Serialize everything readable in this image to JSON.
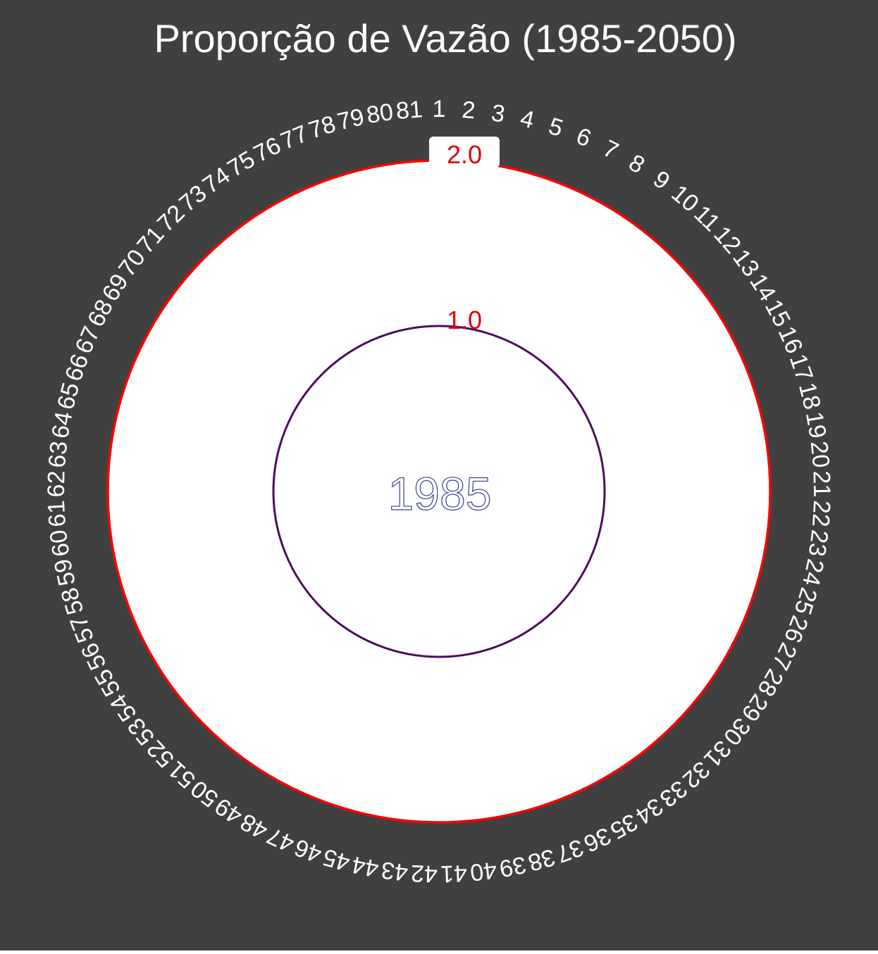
{
  "chart_data": {
    "type": "polar-line",
    "title": "Proporção de Vazão (1985-2050)",
    "center_label": "1985",
    "year_range": [
      1985,
      2050
    ],
    "current_year": 1985,
    "r_range": [
      0,
      2.0
    ],
    "r_ticks": [
      {
        "value": 1.0,
        "label": "1.0"
      },
      {
        "value": 2.0,
        "label": "2.0"
      }
    ],
    "angle_labels": [
      "1",
      "2",
      "3",
      "4",
      "5",
      "6",
      "7",
      "8",
      "9",
      "10",
      "11",
      "12",
      "13",
      "14",
      "15",
      "16",
      "17",
      "18",
      "19",
      "20",
      "21",
      "22",
      "23",
      "24",
      "25",
      "26",
      "27",
      "28",
      "29",
      "30",
      "31",
      "32",
      "33",
      "34",
      "35",
      "36",
      "37",
      "38",
      "39",
      "40",
      "41",
      "42",
      "43",
      "44",
      "45",
      "46",
      "47",
      "48",
      "49",
      "50",
      "51",
      "52",
      "53",
      "54",
      "55",
      "56",
      "57",
      "58",
      "59",
      "60",
      "61",
      "62",
      "63",
      "64",
      "65",
      "66",
      "67",
      "68",
      "69",
      "70",
      "71",
      "72",
      "73",
      "74",
      "75",
      "76",
      "77",
      "78",
      "79",
      "80",
      "81"
    ],
    "series": [
      {
        "year": 1985,
        "value": 1.0,
        "color": "#4a0d5c"
      }
    ],
    "colors": {
      "background": "#404040",
      "panel": "#ffffff",
      "outer_ring": "#ff0000",
      "tick_label": "#e00000",
      "text": "#ffffff",
      "center_label_stroke": "#3a3f8f"
    }
  }
}
